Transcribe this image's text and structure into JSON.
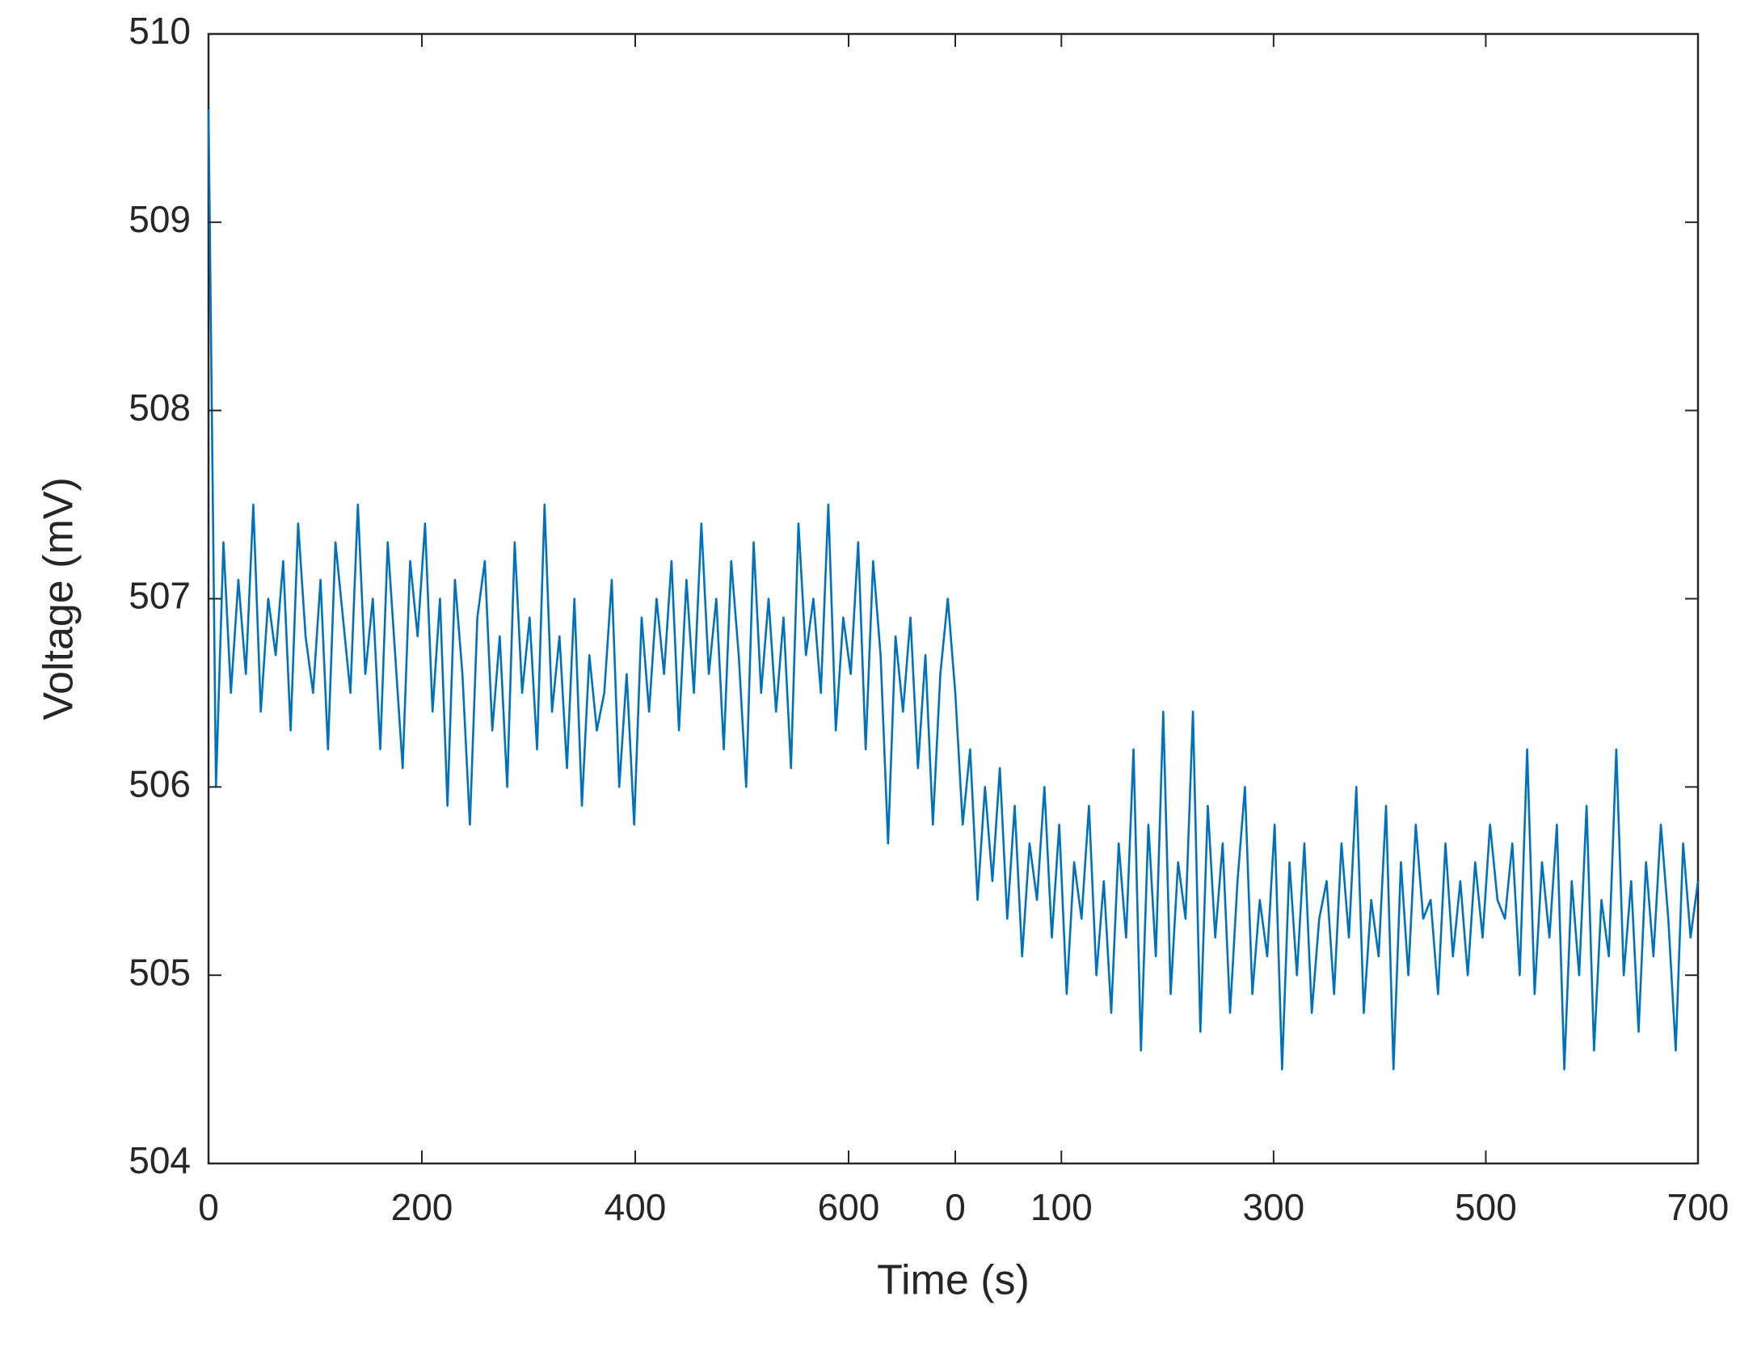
{
  "chart_data": [
    {
      "type": "line",
      "ylabel": "Voltage (mV)",
      "xlim": [
        0,
        700
      ],
      "xticks": [
        0,
        200,
        400,
        600
      ],
      "ylim": [
        504,
        510
      ],
      "yticks": [
        504,
        505,
        506,
        507,
        508,
        509,
        510
      ],
      "x": [
        0,
        7,
        14,
        21,
        28,
        35,
        42,
        49,
        56,
        63,
        70,
        77,
        84,
        91,
        98,
        105,
        112,
        119,
        126,
        133,
        140,
        147,
        154,
        161,
        168,
        175,
        182,
        189,
        196,
        203,
        210,
        217,
        224,
        231,
        238,
        245,
        252,
        259,
        266,
        273,
        280,
        287,
        294,
        301,
        308,
        315,
        322,
        329,
        336,
        343,
        350,
        357,
        364,
        371,
        378,
        385,
        392,
        399,
        406,
        413,
        420,
        427,
        434,
        441,
        448,
        455,
        462,
        469,
        476,
        483,
        490,
        497,
        504,
        511,
        518,
        525,
        532,
        539,
        546,
        553,
        560,
        567,
        574,
        581,
        588,
        595,
        602,
        609,
        616,
        623,
        630,
        637,
        644,
        651,
        658,
        665,
        672,
        679,
        686,
        693,
        700
      ],
      "series": [
        {
          "color": "#0072bd",
          "values": [
            509.6,
            506.0,
            507.3,
            506.5,
            507.1,
            506.6,
            507.5,
            506.4,
            507.0,
            506.7,
            507.2,
            506.3,
            507.4,
            506.8,
            506.5,
            507.1,
            506.2,
            507.3,
            506.9,
            506.5,
            507.5,
            506.6,
            507.0,
            506.2,
            507.3,
            506.7,
            506.1,
            507.2,
            506.8,
            507.4,
            506.4,
            507.0,
            505.9,
            507.1,
            506.6,
            505.8,
            506.9,
            507.2,
            506.3,
            506.8,
            506.0,
            507.3,
            506.5,
            506.9,
            506.2,
            507.5,
            506.4,
            506.8,
            506.1,
            507.0,
            505.9,
            506.7,
            506.3,
            506.5,
            507.1,
            506.0,
            506.6,
            505.8,
            506.9,
            506.4,
            507.0,
            506.6,
            507.2,
            506.3,
            507.1,
            506.5,
            507.4,
            506.6,
            507.0,
            506.2,
            507.2,
            506.7,
            506.0,
            507.3,
            506.5,
            507.0,
            506.4,
            506.9,
            506.1,
            507.4,
            506.7,
            507.0,
            506.5,
            507.5,
            506.3,
            506.9,
            506.6,
            507.3,
            506.2,
            507.2,
            506.7,
            505.7,
            506.8,
            506.4,
            506.9,
            506.1,
            506.7,
            505.8,
            506.6,
            507.0,
            506.5
          ]
        }
      ]
    },
    {
      "type": "line",
      "xlabel": "Time (s)",
      "xlim": [
        0,
        700
      ],
      "xticks": [
        0,
        100,
        300,
        500,
        700
      ],
      "ylim": [
        504,
        510
      ],
      "yticks": [
        504,
        505,
        506,
        507,
        508,
        509,
        510
      ],
      "x": [
        0,
        7,
        14,
        21,
        28,
        35,
        42,
        49,
        56,
        63,
        70,
        77,
        84,
        91,
        98,
        105,
        112,
        119,
        126,
        133,
        140,
        147,
        154,
        161,
        168,
        175,
        182,
        189,
        196,
        203,
        210,
        217,
        224,
        231,
        238,
        245,
        252,
        259,
        266,
        273,
        280,
        287,
        294,
        301,
        308,
        315,
        322,
        329,
        336,
        343,
        350,
        357,
        364,
        371,
        378,
        385,
        392,
        399,
        406,
        413,
        420,
        427,
        434,
        441,
        448,
        455,
        462,
        469,
        476,
        483,
        490,
        497,
        504,
        511,
        518,
        525,
        532,
        539,
        546,
        553,
        560,
        567,
        574,
        581,
        588,
        595,
        602,
        609,
        616,
        623,
        630,
        637,
        644,
        651,
        658,
        665,
        672,
        679,
        686,
        693,
        700
      ],
      "series": [
        {
          "color": "#0072bd",
          "values": [
            506.5,
            505.8,
            506.2,
            505.4,
            506.0,
            505.5,
            506.1,
            505.3,
            505.9,
            505.1,
            505.7,
            505.4,
            506.0,
            505.2,
            505.8,
            504.9,
            505.6,
            505.3,
            505.9,
            505.0,
            505.5,
            504.8,
            505.7,
            505.2,
            506.2,
            504.6,
            505.8,
            505.1,
            506.4,
            504.9,
            505.6,
            505.3,
            506.4,
            504.7,
            505.9,
            505.2,
            505.7,
            504.8,
            505.5,
            506.0,
            504.9,
            505.4,
            505.1,
            505.8,
            504.5,
            505.6,
            505.0,
            505.7,
            504.8,
            505.3,
            505.5,
            504.9,
            505.7,
            505.2,
            506.0,
            504.8,
            505.4,
            505.1,
            505.9,
            504.5,
            505.6,
            505.0,
            505.8,
            505.3,
            505.4,
            504.9,
            505.7,
            505.1,
            505.5,
            505.0,
            505.6,
            505.2,
            505.8,
            505.4,
            505.3,
            505.7,
            505.0,
            506.2,
            504.9,
            505.6,
            505.2,
            505.8,
            504.5,
            505.5,
            505.0,
            505.9,
            504.6,
            505.4,
            505.1,
            506.2,
            505.0,
            505.5,
            504.7,
            505.6,
            505.1,
            505.8,
            505.3,
            504.6,
            505.7,
            505.2,
            505.5
          ]
        }
      ]
    }
  ]
}
